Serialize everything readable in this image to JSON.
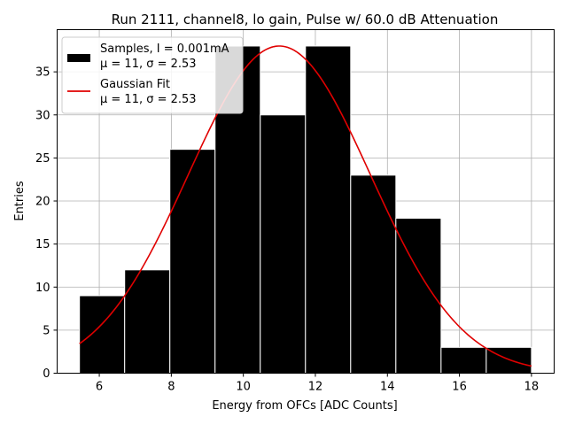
{
  "chart_data": {
    "type": "histogram",
    "title": "Run 2111, channel8, lo gain, Pulse w/ 60.0 dB Attenuation",
    "xlabel": "Energy from OFCs [ADC Counts]",
    "ylabel": "Entries",
    "xlim": [
      4.83,
      18.63
    ],
    "ylim": [
      0,
      39.9
    ],
    "xticks": [
      6,
      8,
      10,
      12,
      14,
      16,
      18
    ],
    "yticks": [
      0,
      5,
      10,
      15,
      20,
      25,
      30,
      35
    ],
    "grid": true,
    "bin_edges": [
      5.45,
      6.705,
      7.96,
      9.215,
      10.47,
      11.725,
      12.98,
      14.235,
      15.49,
      16.745,
      18.0
    ],
    "counts": [
      9,
      12,
      26,
      38,
      30,
      38,
      23,
      18,
      3,
      3
    ],
    "bar_color": "#000000",
    "bar_edge_color": "#ffffff",
    "fit": {
      "type": "gaussian",
      "amplitude": 38,
      "mu": 11,
      "sigma": 2.53,
      "x_range": [
        5.45,
        18.0
      ],
      "color": "#e00000"
    },
    "legend": {
      "location": "upper-left",
      "entries": [
        {
          "line1": "Samples, I = 0.001mA",
          "line2": "μ = 11, σ = 2.53",
          "marker": "patch"
        },
        {
          "line1": "Gaussian Fit",
          "line2": "μ = 11, σ = 2.53",
          "marker": "line"
        }
      ]
    }
  }
}
